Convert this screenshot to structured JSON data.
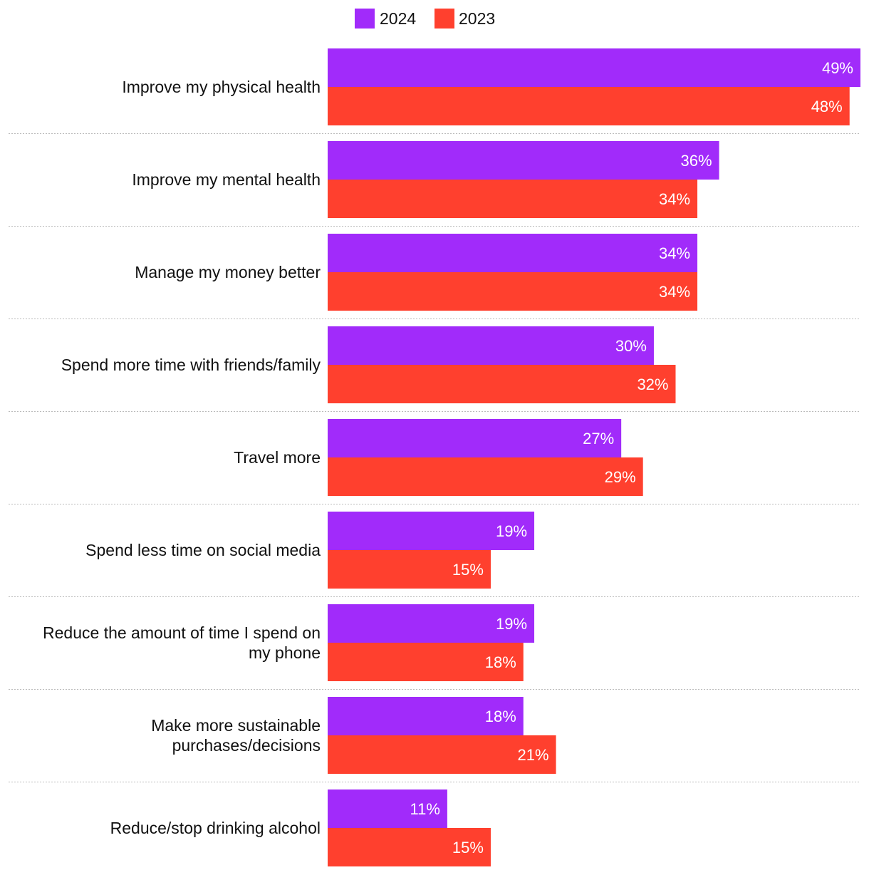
{
  "chart_data": {
    "type": "bar",
    "orientation": "horizontal",
    "title": "",
    "xlabel": "",
    "ylabel": "",
    "xlim": [
      0,
      49
    ],
    "grid": false,
    "legend_position": "top-center",
    "value_suffix": "%",
    "categories": [
      [
        "Improve my physical health"
      ],
      [
        "Improve my mental health"
      ],
      [
        "Manage my money better"
      ],
      [
        "Spend more time with friends/family"
      ],
      [
        "Travel more"
      ],
      [
        "Spend less time on social media"
      ],
      [
        "Reduce the amount of time I spend on",
        "my phone"
      ],
      [
        "Make more sustainable",
        "purchases/decisions"
      ],
      [
        "Reduce/stop drinking alcohol"
      ]
    ],
    "series": [
      {
        "name": "2024",
        "color": "#a12bfa",
        "values": [
          49,
          36,
          34,
          30,
          27,
          19,
          19,
          18,
          11
        ],
        "labels": [
          "49%",
          "36%",
          "34%",
          "30%",
          "27%",
          "19%",
          "19%",
          "18%",
          "11%"
        ]
      },
      {
        "name": "2023",
        "color": "#ff402e",
        "values": [
          48,
          34,
          34,
          32,
          29,
          15,
          18,
          21,
          15
        ],
        "labels": [
          "48%",
          "34%",
          "34%",
          "32%",
          "29%",
          "15%",
          "18%",
          "21%",
          "15%"
        ]
      }
    ]
  }
}
